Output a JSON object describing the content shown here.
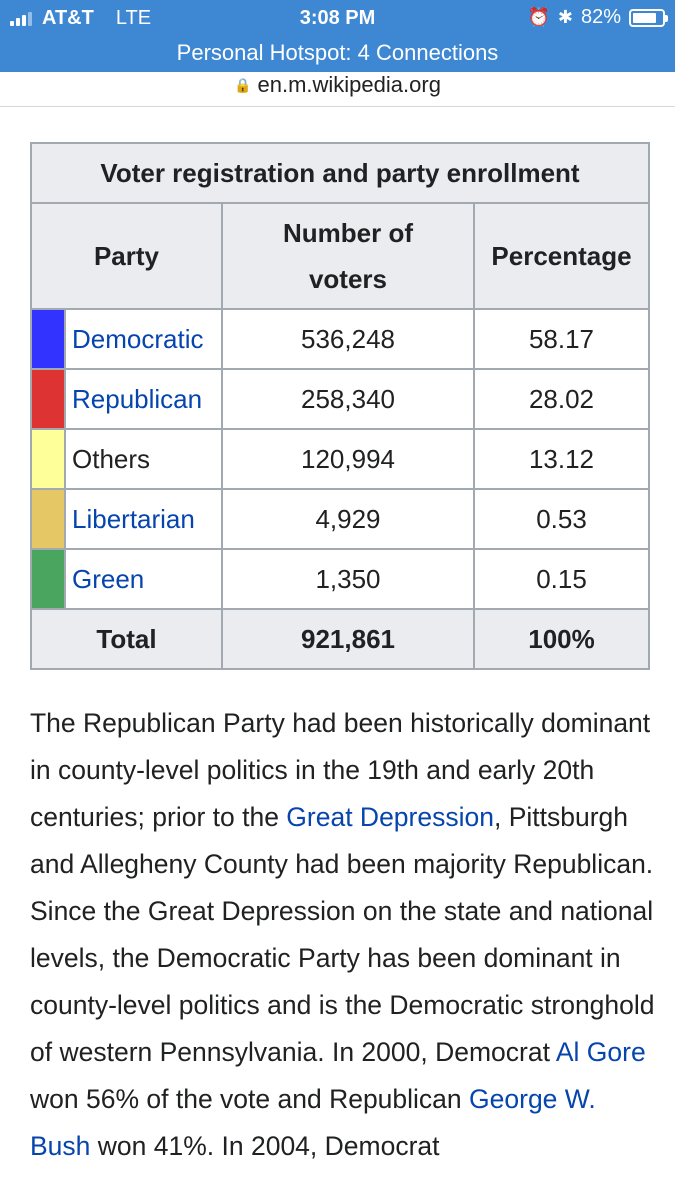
{
  "status_bar": {
    "carrier": "AT&T",
    "network": "LTE",
    "time": "3:08 PM",
    "battery_percent": "82%",
    "battery_level": 0.82
  },
  "hotspot_banner": "Personal Hotspot: 4 Connections",
  "url": "en.m.wikipedia.org",
  "table": {
    "caption": "Voter registration and party enrollment",
    "headers": {
      "party": "Party",
      "voters": "Number of voters",
      "percentage": "Percentage"
    },
    "rows": [
      {
        "party": "Democratic",
        "voters": "536,248",
        "percentage": "58.17",
        "color": "#3333ff",
        "is_link": true
      },
      {
        "party": "Republican",
        "voters": "258,340",
        "percentage": "28.02",
        "color": "#dd3333",
        "is_link": true
      },
      {
        "party": "Others",
        "voters": "120,994",
        "percentage": "13.12",
        "color": "#ffff99",
        "is_link": false
      },
      {
        "party": "Libertarian",
        "voters": "4,929",
        "percentage": "0.53",
        "color": "#e6c766",
        "is_link": true
      },
      {
        "party": "Green",
        "voters": "1,350",
        "percentage": "0.15",
        "color": "#4aa65f",
        "is_link": true
      }
    ],
    "total": {
      "label": "Total",
      "voters": "921,861",
      "percentage": "100%"
    }
  },
  "article": {
    "p1": "The Republican Party had been historically dominant in county-level politics in the 19th and early 20th centuries; prior to the ",
    "link_great_depression": "Great Depression",
    "p2": ", Pittsburgh and Allegheny County had been majority Republican. Since the Great Depression on the state and national levels, the Democratic Party has been dominant in county-level politics and is the Democratic stronghold of western Pennsylvania. In 2000, Democrat ",
    "link_al_gore": "Al Gore",
    "p3": " won 56% of the vote and Republican ",
    "link_bush": "George W. Bush",
    "p4": " won 41%. In 2004, Democrat"
  },
  "colors": {
    "ios_blue": "#3d87d3",
    "link_blue": "#0645ad",
    "table_border": "#a2a9b1",
    "header_bg": "#eaecf0"
  }
}
